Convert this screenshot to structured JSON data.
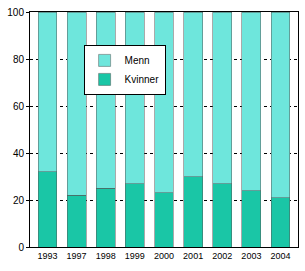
{
  "chart_data": {
    "type": "bar",
    "categories": [
      "1993",
      "1997",
      "1998",
      "1999",
      "2000",
      "2001",
      "2002",
      "2003",
      "2004"
    ],
    "series": [
      {
        "name": "Kvinner",
        "color": "#1ac6a6",
        "values": [
          32,
          22,
          25,
          27,
          23,
          30,
          27,
          24,
          21
        ]
      },
      {
        "name": "Menn",
        "color": "#6ee6dc",
        "values": [
          68,
          78,
          75,
          73,
          77,
          70,
          73,
          76,
          79
        ]
      }
    ],
    "ylim": [
      0,
      100
    ],
    "yticks": [
      0,
      20,
      40,
      60,
      80,
      100
    ],
    "stacked": true,
    "grid": true,
    "legend": "upper left"
  }
}
